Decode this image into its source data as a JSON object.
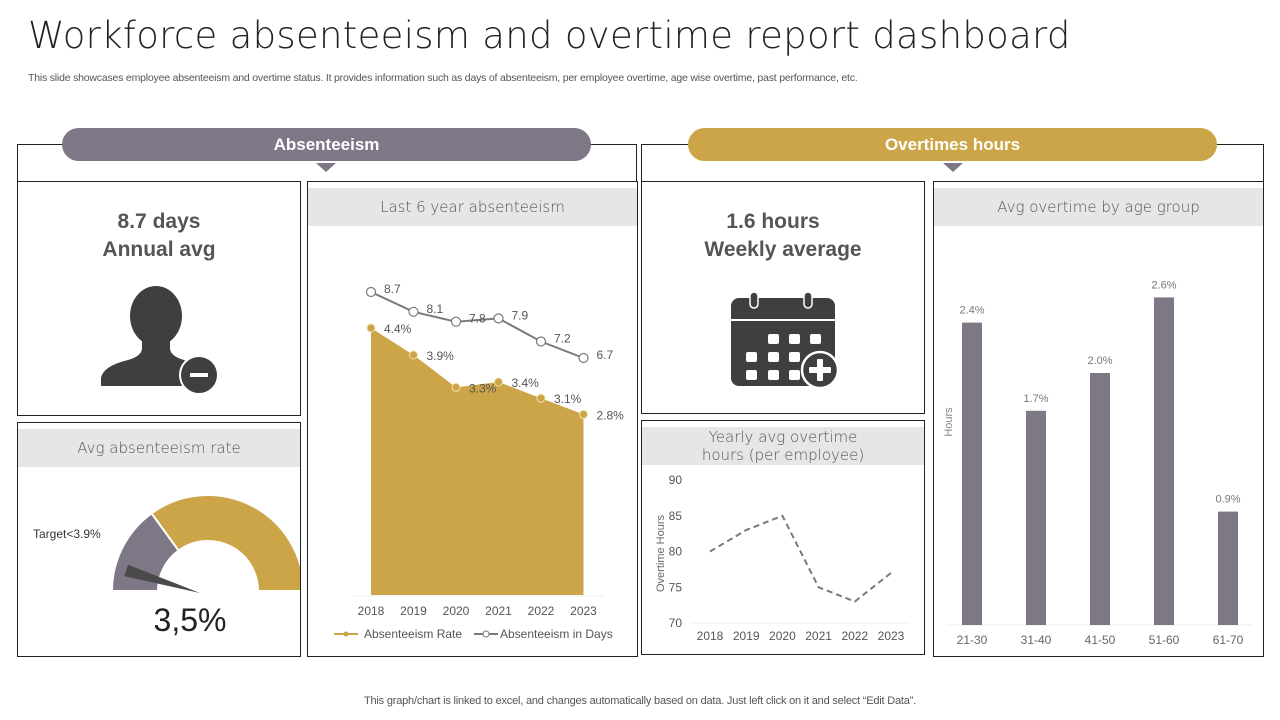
{
  "header": {
    "title": "Workforce absenteeism and overtime report dashboard",
    "subtitle": "This slide showcases employee absenteeism and overtime status. It provides information such as days of absenteeism, per employee overtime, age wise overtime, past performance, etc."
  },
  "footer": "This graph/chart is linked to excel,  and changes automatically based on data. Just left click on it and select “Edit Data”.",
  "colors": {
    "purple": "#7e7786",
    "gold": "#cca548",
    "dark": "#3f3f3f",
    "panel_head": "#e6e6e8"
  },
  "sections": {
    "absenteeism": {
      "label": "Absenteeism"
    },
    "overtime": {
      "label": "Overtimes hours"
    }
  },
  "kpis": {
    "absence": {
      "value": "8.7 days",
      "label": "Annual avg",
      "icon": "user-minus-icon"
    },
    "overtime": {
      "value": "1.6 hours",
      "label": "Weekly average",
      "icon": "calendar-plus-icon"
    }
  },
  "chart_data": [
    {
      "id": "last6",
      "type": "area",
      "title": "Last 6 year absenteeism",
      "categories": [
        "2018",
        "2019",
        "2020",
        "2021",
        "2022",
        "2023"
      ],
      "series": [
        {
          "name": "Absenteeism Rate",
          "kind": "area",
          "values": [
            4.4,
            3.9,
            3.3,
            3.4,
            3.1,
            2.8
          ],
          "labels": [
            "4.4%",
            "3.9%",
            "3.3%",
            "3.4%",
            "3.1%",
            "2.8%"
          ]
        },
        {
          "name": "Absenteeism in Days",
          "kind": "line",
          "values": [
            8.7,
            8.1,
            7.8,
            7.9,
            7.2,
            6.7
          ],
          "labels": [
            "8.7",
            "8.1",
            "7.8",
            "7.9",
            "7.2",
            "6.7"
          ]
        }
      ],
      "legend": "bottom"
    },
    {
      "id": "gauge",
      "type": "pie",
      "title": "Avg absenteeism rate",
      "value": 3.5,
      "value_label": "3,5%",
      "target_label": "Target<3.9%",
      "segments": [
        {
          "name": "Target zone",
          "fraction": 0.3
        },
        {
          "name": "Remaining",
          "fraction": 0.7
        }
      ],
      "needle_fraction": 0.1
    },
    {
      "id": "yearly_ot",
      "type": "line",
      "title": "Yearly avg overtime hours (per employee)",
      "categories": [
        "2018",
        "2019",
        "2020",
        "2021",
        "2022",
        "2023"
      ],
      "series": [
        {
          "name": "Overtime Hours",
          "values": [
            80,
            83,
            85,
            75,
            73,
            77
          ]
        }
      ],
      "ylabel": "Overtime Hours",
      "ylim": [
        70,
        90
      ],
      "yticks": [
        "70",
        "75",
        "80",
        "85",
        "90"
      ],
      "line_style": "dashed"
    },
    {
      "id": "age_ot",
      "type": "bar",
      "title": "Avg overtime by age group",
      "categories": [
        "21-30",
        "31-40",
        "41-50",
        "51-60",
        "61-70"
      ],
      "values": [
        2.4,
        1.7,
        2.0,
        2.6,
        0.9
      ],
      "labels": [
        "2.4%",
        "1.7%",
        "2.0%",
        "2.6%",
        "0.9%"
      ],
      "ylabel": "Hours"
    }
  ]
}
